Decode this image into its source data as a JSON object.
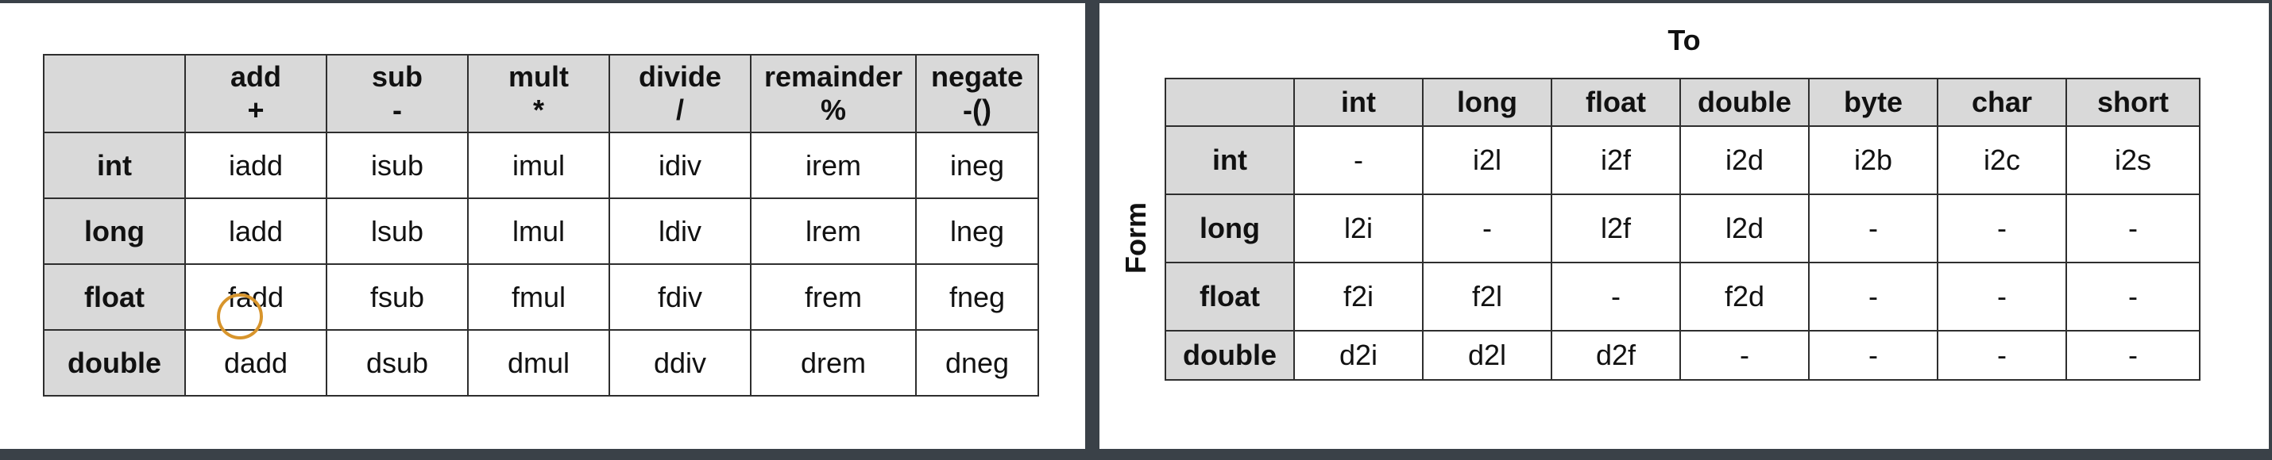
{
  "operations_table": {
    "columns": [
      {
        "name": "add",
        "symbol": "+"
      },
      {
        "name": "sub",
        "symbol": "-"
      },
      {
        "name": "mult",
        "symbol": "*"
      },
      {
        "name": "divide",
        "symbol": "/"
      },
      {
        "name": "remainder",
        "symbol": "%"
      },
      {
        "name": "negate",
        "symbol": "-()"
      }
    ],
    "rows": [
      {
        "type": "int",
        "cells": [
          "iadd",
          "isub",
          "imul",
          "idiv",
          "irem",
          "ineg"
        ]
      },
      {
        "type": "long",
        "cells": [
          "ladd",
          "lsub",
          "lmul",
          "ldiv",
          "lrem",
          "lneg"
        ]
      },
      {
        "type": "float",
        "cells": [
          "fadd",
          "fsub",
          "fmul",
          "fdiv",
          "frem",
          "fneg"
        ]
      },
      {
        "type": "double",
        "cells": [
          "dadd",
          "dsub",
          "dmul",
          "ddiv",
          "drem",
          "dneg"
        ]
      }
    ]
  },
  "conversion_table": {
    "to_label": "To",
    "from_label": "Form",
    "columns": [
      "int",
      "long",
      "float",
      "double",
      "byte",
      "char",
      "short"
    ],
    "rows": [
      {
        "type": "int",
        "cells": [
          "-",
          "i2l",
          "i2f",
          "i2d",
          "i2b",
          "i2c",
          "i2s"
        ]
      },
      {
        "type": "long",
        "cells": [
          "l2i",
          "-",
          "l2f",
          "l2d",
          "-",
          "-",
          "-"
        ]
      },
      {
        "type": "float",
        "cells": [
          "f2i",
          "f2l",
          "-",
          "f2d",
          "-",
          "-",
          "-"
        ]
      },
      {
        "type": "double",
        "cells": [
          "d2i",
          "d2l",
          "d2f",
          "-",
          "-",
          "-",
          "-"
        ]
      }
    ]
  },
  "colors": {
    "header_fill": "#d9d9d9",
    "cursor_ring": "#d8952c"
  }
}
